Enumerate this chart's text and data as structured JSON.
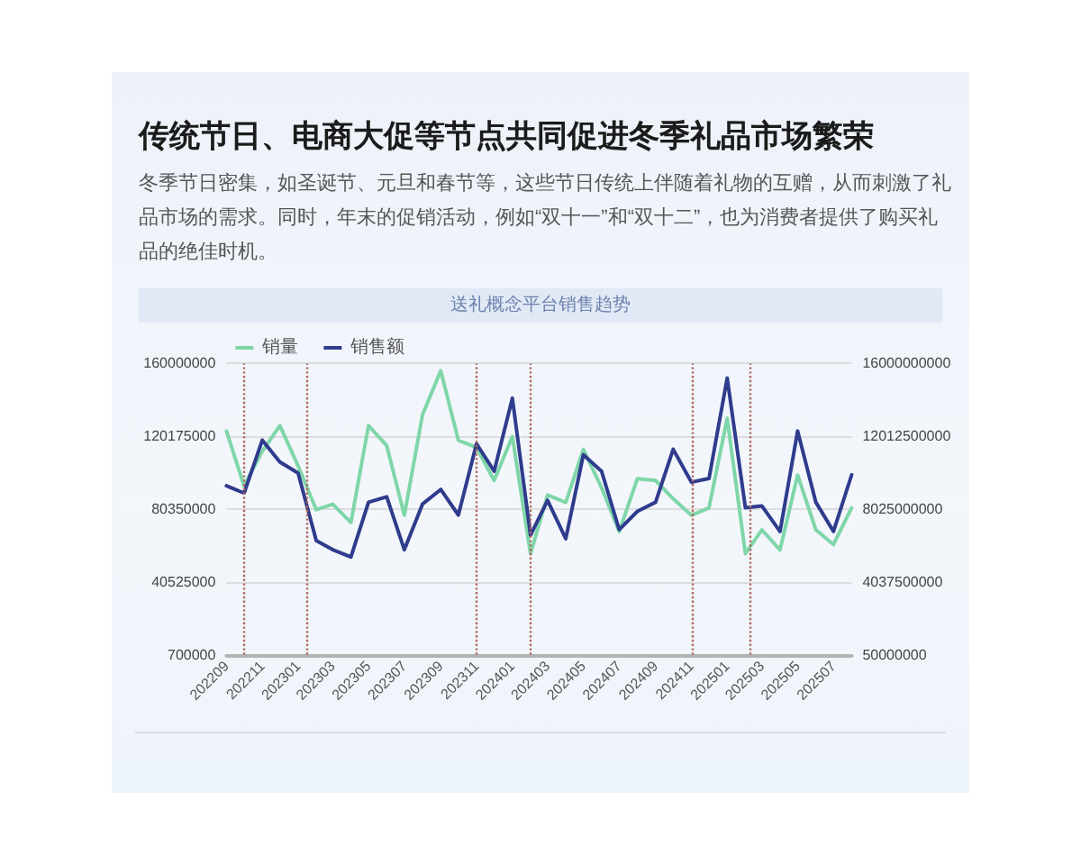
{
  "chart_data": {
    "type": "line",
    "title": "传统节日、电商大促等节点共同促进冬季礼品市场繁荣",
    "subtitle": "冬季节日密集，如圣诞节、元旦和春节等，这些节日传统上伴随着礼物的互赠，从而刺激了礼品市场的需求。同时，年末的促销活动，例如“双十一”和“双十二”，也为消费者提供了购买礼品的绝佳时机。",
    "annotations": [
      "送礼概念平台销售趋势"
    ],
    "x": [
      "2022-09",
      "2022-10",
      "2022-11",
      "2022-12",
      "2023-01",
      "2023-02",
      "2023-03",
      "2023-04",
      "2023-05",
      "2023-06",
      "2023-07",
      "2023-08",
      "2023-09",
      "2023-10",
      "2023-11",
      "2023-12",
      "2024-01",
      "2024-02",
      "2024-03",
      "2024-04",
      "2024-05",
      "2024-06",
      "2024-07",
      "2024-08",
      "2024-09",
      "2024-10",
      "2024-11",
      "2024-12",
      "2025-01",
      "2025-02",
      "2025-03",
      "2025-04",
      "2025-05",
      "2025-06",
      "2025-07",
      "2025-08"
    ],
    "xlim": [
      "2022-09",
      "2025-08"
    ],
    "xticks": [
      {
        "value": "2022-09",
        "label": "202209"
      },
      {
        "value": "2022-11",
        "label": "202211"
      },
      {
        "value": "2023-01",
        "label": "202301"
      },
      {
        "value": "2023-03",
        "label": "202303"
      },
      {
        "value": "2023-05",
        "label": "202305"
      },
      {
        "value": "2023-07",
        "label": "202307"
      },
      {
        "value": "2023-09",
        "label": "202309"
      },
      {
        "value": "2023-11",
        "label": "202311"
      },
      {
        "value": "2024-01",
        "label": "202401"
      },
      {
        "value": "2024-03",
        "label": "202403"
      },
      {
        "value": "2024-05",
        "label": "202405"
      },
      {
        "value": "2024-07",
        "label": "202407"
      },
      {
        "value": "2024-09",
        "label": "202409"
      },
      {
        "value": "2024-11",
        "label": "202411"
      },
      {
        "value": "2025-01",
        "label": "202501"
      },
      {
        "value": "2025-03",
        "label": "202503"
      },
      {
        "value": "2025-05",
        "label": "202505"
      },
      {
        "value": "2025-07",
        "label": "202507"
      }
    ],
    "series": [
      {
        "name": "销量",
        "color": "#7fd6a9",
        "values": [
          123000000,
          93000000,
          112000000,
          126000000,
          104000000,
          80000000,
          83000000,
          73000000,
          126000000,
          115000000,
          77000000,
          132000000,
          156000000,
          118000000,
          114000000,
          96000000,
          120000000,
          56000000,
          88000000,
          84000000,
          113000000,
          92000000,
          68000000,
          97000000,
          96000000,
          86000000,
          77000000,
          81000000,
          130000000,
          56000000,
          69000000,
          58000000,
          99000000,
          69000000,
          61000000,
          81000000
        ]
      },
      {
        "name": "销售额",
        "color": "#2f3b8c",
        "axis": "y2",
        "values": [
          9300000000,
          8900000000,
          11800000000,
          10600000000,
          10000000000,
          6300000000,
          5800000000,
          5400000000,
          8400000000,
          8700000000,
          5800000000,
          8300000000,
          9100000000,
          7700000000,
          11600000000,
          10100000000,
          14100000000,
          6600000000,
          8500000000,
          6400000000,
          11000000000,
          10100000000,
          6900000000,
          7900000000,
          8400000000,
          11300000000,
          9500000000,
          9700000000,
          15200000000,
          8100000000,
          8200000000,
          6800000000,
          12300000000,
          8400000000,
          6800000000,
          9900000000
        ]
      }
    ],
    "ylim": [
      700000,
      160000000
    ],
    "yticks": [
      700000,
      40525000,
      80350000,
      120175000,
      160000000
    ],
    "y2lim": [
      50000000,
      16000000000
    ],
    "y2ticks": [
      50000000,
      4037500000,
      8025000000,
      12012500000,
      16000000000
    ],
    "ref_lines": [
      {
        "axis": "x",
        "value": "2022-10",
        "color": "#b06a5e",
        "line_style": "dotted"
      },
      {
        "axis": "x",
        "value": "2023-01-15",
        "color": "#b06a5e",
        "line_style": "dotted"
      },
      {
        "axis": "x",
        "value": "2023-11",
        "color": "#b06a5e",
        "line_style": "dotted"
      },
      {
        "axis": "x",
        "value": "2024-02",
        "color": "#b06a5e",
        "line_style": "dotted"
      },
      {
        "axis": "x",
        "value": "2024-11-03",
        "color": "#b06a5e",
        "line_style": "dotted"
      },
      {
        "axis": "x",
        "value": "2025-02-08",
        "color": "#b06a5e",
        "line_style": "dotted"
      }
    ],
    "grid": "y",
    "legend": "top left",
    "marker": "none"
  }
}
